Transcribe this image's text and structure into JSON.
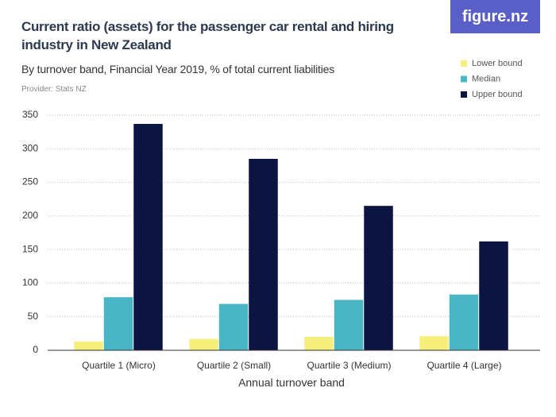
{
  "chart_data": {
    "type": "bar",
    "title": "Current ratio (assets) for the passenger car rental and hiring industry in New Zealand",
    "subtitle": "By turnover band, Financial Year 2019, % of total current liabilities",
    "provider": "Provider: Stats NZ",
    "logo": "figure.nz",
    "x_label": "Annual turnover band",
    "categories": [
      "Quartile 1 (Micro)",
      "Quartile 2 (Small)",
      "Quartile 3 (Medium)",
      "Quartile 4 (Large)"
    ],
    "series": [
      {
        "name": "Lower bound",
        "color": "#f6ef7c",
        "values": [
          13,
          17,
          20,
          21
        ]
      },
      {
        "name": "Median",
        "color": "#4ab5c4",
        "values": [
          79,
          69,
          75,
          83
        ]
      },
      {
        "name": "Upper bound",
        "color": "#0c1541",
        "values": [
          337,
          285,
          215,
          162
        ]
      }
    ],
    "ylim": [
      0,
      350
    ],
    "yticks": [
      0,
      50,
      100,
      150,
      200,
      250,
      300,
      350
    ],
    "grid": true,
    "legend": "top-right"
  }
}
